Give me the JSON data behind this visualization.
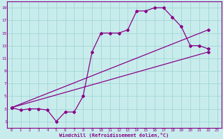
{
  "xlabel": "Windchill (Refroidissement éolien,°C)",
  "bg_color": "#c8ecec",
  "grid_color": "#a8d8d8",
  "line_color": "#880088",
  "xlim": [
    -0.5,
    23.5
  ],
  "ylim": [
    0,
    20
  ],
  "xticks": [
    0,
    1,
    2,
    3,
    4,
    5,
    6,
    7,
    8,
    9,
    10,
    11,
    12,
    13,
    14,
    15,
    16,
    17,
    18,
    19,
    20,
    21,
    22,
    23
  ],
  "yticks": [
    1,
    3,
    5,
    7,
    9,
    11,
    13,
    15,
    17,
    19
  ],
  "line1_x": [
    0,
    1,
    2,
    3,
    4,
    5,
    6,
    7,
    8,
    9,
    10,
    11,
    12,
    13,
    14,
    15,
    16,
    17,
    18,
    19,
    20,
    21,
    22
  ],
  "line1_y": [
    3.2,
    2.8,
    3.0,
    3.0,
    2.8,
    1.0,
    2.5,
    2.5,
    5.0,
    12.0,
    15.0,
    15.0,
    15.0,
    15.5,
    18.5,
    18.5,
    19.0,
    19.0,
    17.5,
    16.0,
    13.0,
    13.0,
    12.5
  ],
  "line2_x": [
    0,
    22
  ],
  "line2_y": [
    3.2,
    12.0
  ],
  "line3_x": [
    0,
    22
  ],
  "line3_y": [
    3.2,
    15.5
  ]
}
